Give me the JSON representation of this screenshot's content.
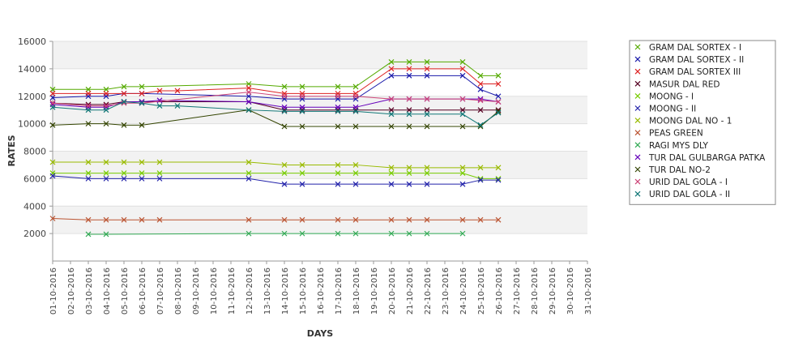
{
  "chart_data": {
    "type": "line",
    "xlabel": "DAYS",
    "ylabel": "RATES",
    "ylim": [
      0,
      16000
    ],
    "yticks": [
      2000,
      4000,
      6000,
      8000,
      10000,
      12000,
      14000,
      16000
    ],
    "grid": true,
    "legend_position": "right",
    "categories": [
      "01-10-2016",
      "02-10-2016",
      "03-10-2016",
      "04-10-2016",
      "05-10-2016",
      "06-10-2016",
      "07-10-2016",
      "08-10-2016",
      "09-10-2016",
      "10-10-2016",
      "11-10-2016",
      "12-10-2016",
      "13-10-2016",
      "14-10-2016",
      "15-10-2016",
      "16-10-2016",
      "17-10-2016",
      "18-10-2016",
      "19-10-2016",
      "20-10-2016",
      "21-10-2016",
      "22-10-2016",
      "23-10-2016",
      "24-10-2016",
      "25-10-2016",
      "26-10-2016",
      "27-10-2016",
      "28-10-2016",
      "29-10-2016",
      "30-10-2016",
      "31-10-2016"
    ],
    "series": [
      {
        "name": "GRAM DAL SORTEX  - I",
        "color": "#55aa00",
        "values": [
          12500,
          null,
          12500,
          12500,
          12700,
          12700,
          null,
          null,
          null,
          null,
          null,
          12900,
          null,
          12700,
          12700,
          null,
          12700,
          12700,
          null,
          14500,
          14500,
          14500,
          null,
          14500,
          13500,
          13500,
          null,
          null,
          null,
          null,
          null
        ]
      },
      {
        "name": "GRAM DAL SORTEX - II",
        "color": "#1a1aaa",
        "values": [
          11900,
          null,
          12000,
          12000,
          12200,
          12200,
          null,
          null,
          null,
          null,
          null,
          12000,
          null,
          11800,
          11800,
          null,
          11800,
          11800,
          null,
          13500,
          13500,
          13500,
          null,
          13500,
          12500,
          12000,
          null,
          null,
          null,
          null,
          null
        ]
      },
      {
        "name": "GRAM DAL SORTEX III",
        "color": "#dd2222",
        "values": [
          12200,
          null,
          12200,
          12200,
          12200,
          12200,
          12400,
          12400,
          null,
          null,
          null,
          12600,
          null,
          12200,
          12200,
          null,
          12200,
          12200,
          null,
          14000,
          14000,
          14000,
          null,
          14000,
          12900,
          12900,
          null,
          null,
          null,
          null,
          null
        ]
      },
      {
        "name": "MASUR DAL RED",
        "color": "#550022",
        "values": [
          11500,
          null,
          11400,
          11400,
          11600,
          11600,
          null,
          null,
          null,
          null,
          null,
          11600,
          null,
          11000,
          11000,
          null,
          11000,
          11000,
          null,
          11000,
          11000,
          11000,
          null,
          11000,
          11000,
          11000,
          null,
          null,
          null,
          null,
          null
        ]
      },
      {
        "name": "MOONG - I",
        "color": "#77cc00",
        "values": [
          6400,
          null,
          6400,
          6400,
          6400,
          6400,
          6400,
          null,
          null,
          null,
          null,
          6400,
          null,
          6400,
          6400,
          null,
          6400,
          6400,
          null,
          6400,
          6400,
          6400,
          null,
          6400,
          6000,
          6000,
          null,
          null,
          null,
          null,
          null
        ]
      },
      {
        "name": "MOONG - II",
        "color": "#2222aa",
        "values": [
          6200,
          null,
          6000,
          6000,
          6000,
          6000,
          6000,
          null,
          null,
          null,
          null,
          6000,
          null,
          5600,
          5600,
          null,
          5600,
          5600,
          null,
          5600,
          5600,
          5600,
          null,
          5600,
          5900,
          5900,
          null,
          null,
          null,
          null,
          null
        ]
      },
      {
        "name": "MOONG DAL NO - 1",
        "color": "#99bb00",
        "values": [
          7200,
          null,
          7200,
          7200,
          7200,
          7200,
          7200,
          null,
          null,
          null,
          null,
          7200,
          null,
          7000,
          7000,
          null,
          7000,
          7000,
          null,
          6800,
          6800,
          6800,
          null,
          6800,
          6800,
          6800,
          null,
          null,
          null,
          null,
          null
        ]
      },
      {
        "name": "PEAS GREEN",
        "color": "#bb5533",
        "values": [
          3100,
          null,
          3000,
          3000,
          3000,
          3000,
          3000,
          null,
          null,
          null,
          null,
          3000,
          null,
          3000,
          3000,
          null,
          3000,
          3000,
          null,
          3000,
          3000,
          3000,
          null,
          3000,
          3000,
          3000,
          null,
          null,
          null,
          null,
          null
        ]
      },
      {
        "name": "RAGI MYS DLY",
        "color": "#33aa55",
        "values": [
          null,
          null,
          1950,
          1950,
          null,
          null,
          null,
          null,
          null,
          null,
          null,
          2000,
          null,
          2000,
          2000,
          null,
          2000,
          2000,
          null,
          2000,
          2000,
          2000,
          null,
          2000,
          null,
          null,
          null,
          null,
          null,
          null,
          null
        ]
      },
      {
        "name": "TUR DAL GULBARGA PATKA",
        "color": "#6600bb",
        "values": [
          11400,
          null,
          11200,
          11200,
          11600,
          11600,
          11700,
          null,
          null,
          null,
          null,
          11600,
          null,
          11200,
          11200,
          null,
          11200,
          11200,
          null,
          11800,
          11800,
          11800,
          null,
          11800,
          11800,
          11600,
          null,
          null,
          null,
          null,
          null
        ]
      },
      {
        "name": "TUR DAL NO-2",
        "color": "#334400",
        "values": [
          9900,
          null,
          10000,
          10000,
          9900,
          9900,
          null,
          null,
          null,
          null,
          null,
          11000,
          null,
          9800,
          9800,
          null,
          9800,
          9800,
          null,
          9800,
          9800,
          9800,
          null,
          9800,
          9800,
          10900,
          null,
          null,
          null,
          null,
          null
        ]
      },
      {
        "name": "URID DAL GOLA - I",
        "color": "#cc4477",
        "values": [
          11500,
          null,
          11300,
          11300,
          11500,
          11500,
          null,
          null,
          null,
          null,
          null,
          12300,
          null,
          12000,
          12000,
          null,
          12000,
          12000,
          null,
          11800,
          11800,
          11800,
          null,
          11800,
          11700,
          11600,
          null,
          null,
          null,
          null,
          null
        ]
      },
      {
        "name": "URID DAL GOLA - II",
        "color": "#117777",
        "values": [
          11200,
          null,
          11000,
          11000,
          11600,
          11500,
          11300,
          11300,
          null,
          null,
          null,
          11000,
          null,
          10900,
          10900,
          null,
          10900,
          10900,
          null,
          10700,
          10700,
          10700,
          null,
          10700,
          9900,
          10800,
          null,
          null,
          null,
          null,
          null
        ]
      }
    ]
  }
}
